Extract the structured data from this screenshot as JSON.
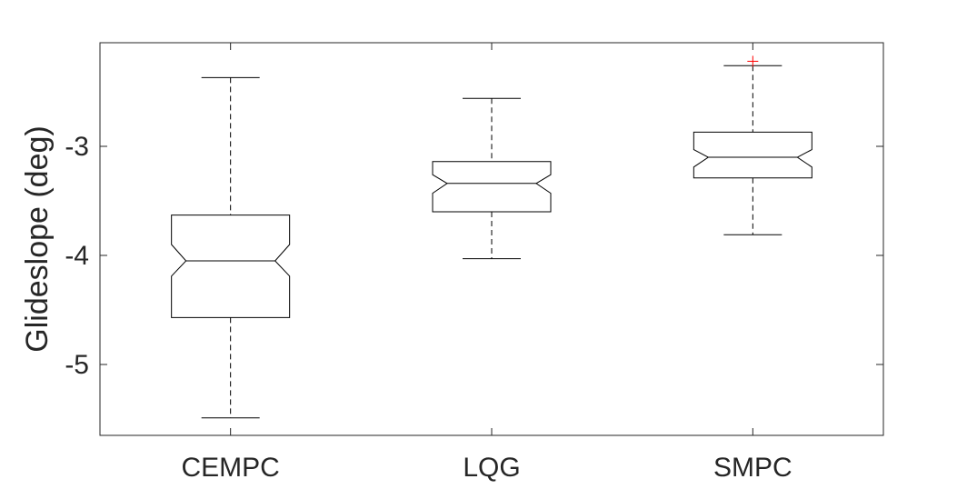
{
  "chart_data": {
    "type": "boxplot",
    "notched": true,
    "title": "",
    "xlabel": "",
    "ylabel": "Glideslope (deg)",
    "ylim": [
      -5.65,
      -2.05
    ],
    "yticks": [
      -5,
      -4,
      -3
    ],
    "ytick_labels": [
      "-5",
      "-4",
      "-3"
    ],
    "categories": [
      "CEMPC",
      "LQG",
      "SMPC"
    ],
    "boxes": [
      {
        "category": "CEMPC",
        "whisker_low": -5.49,
        "q1": -4.57,
        "median": -4.05,
        "q3": -3.63,
        "whisker_high": -2.37,
        "notch_low": -4.19,
        "notch_high": -3.9,
        "outliers": []
      },
      {
        "category": "LQG",
        "whisker_low": -4.03,
        "q1": -3.6,
        "median": -3.34,
        "q3": -3.14,
        "whisker_high": -2.56,
        "notch_low": -3.43,
        "notch_high": -3.26,
        "outliers": []
      },
      {
        "category": "SMPC",
        "whisker_low": -3.81,
        "q1": -3.29,
        "median": -3.1,
        "q3": -2.87,
        "whisker_high": -2.26,
        "notch_low": -3.19,
        "notch_high": -3.03,
        "outliers": [
          -2.22
        ]
      }
    ],
    "grid": false,
    "colors": {
      "box": "#000000",
      "median": "#000000",
      "whisker": "#000000",
      "outlier": "#ff0000",
      "axis": "#262626"
    }
  }
}
